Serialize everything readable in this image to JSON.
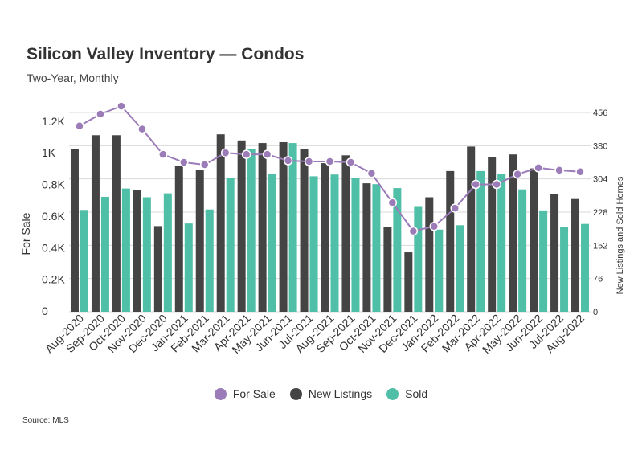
{
  "header": {
    "title": "Silicon Valley Inventory — Condos",
    "subtitle": "Two-Year, Monthly",
    "source": "Source:  MLS"
  },
  "colors": {
    "for_sale": "#9b7bb8",
    "new_listings": "#444444",
    "sold": "#4fbfa8",
    "grid": "#d9d9d9"
  },
  "chart_data": {
    "type": "bar",
    "categories": [
      "Aug-2020",
      "Sep-2020",
      "Oct-2020",
      "Nov-2020",
      "Dec-2020",
      "Jan-2021",
      "Feb-2021",
      "Mar-2021",
      "Apr-2021",
      "May-2021",
      "Jun-2021",
      "Jul-2021",
      "Aug-2021",
      "Sep-2021",
      "Oct-2021",
      "Nov-2021",
      "Dec-2021",
      "Jan-2022",
      "Feb-2022",
      "Mar-2022",
      "Apr-2022",
      "May-2022",
      "Jun-2022",
      "Jul-2022",
      "Aug-2022"
    ],
    "series": [
      {
        "name": "For Sale",
        "type": "line",
        "axis": "left",
        "values": [
          1175,
          1250,
          1300,
          1155,
          995,
          945,
          930,
          1005,
          995,
          995,
          955,
          950,
          950,
          945,
          875,
          690,
          510,
          540,
          655,
          805,
          805,
          870,
          910,
          895,
          885
        ]
      },
      {
        "name": "New Listings",
        "type": "bar",
        "axis": "right",
        "values": [
          372,
          404,
          404,
          278,
          196,
          334,
          324,
          406,
          392,
          386,
          388,
          372,
          340,
          358,
          294,
          194,
          136,
          262,
          322,
          378,
          354,
          360,
          328,
          270,
          258
        ]
      },
      {
        "name": "Sold",
        "type": "bar",
        "axis": "right",
        "values": [
          233,
          263,
          282,
          262,
          271,
          202,
          234,
          307,
          372,
          316,
          386,
          310,
          314,
          306,
          292,
          283,
          240,
          188,
          198,
          322,
          316,
          280,
          232,
          194,
          201
        ]
      }
    ],
    "left_axis": {
      "label": "For Sale",
      "ticks": [
        "0",
        "0.2K",
        "0.4K",
        "0.6K",
        "0.8K",
        "1K",
        "1.2K"
      ],
      "range": [
        0,
        1260
      ]
    },
    "right_axis": {
      "label": "New Listings and Sold Homes",
      "ticks": [
        "0",
        "76",
        "152",
        "228",
        "304",
        "380",
        "456"
      ],
      "range": [
        0,
        456
      ]
    },
    "grid": true,
    "legend_position": "bottom"
  }
}
